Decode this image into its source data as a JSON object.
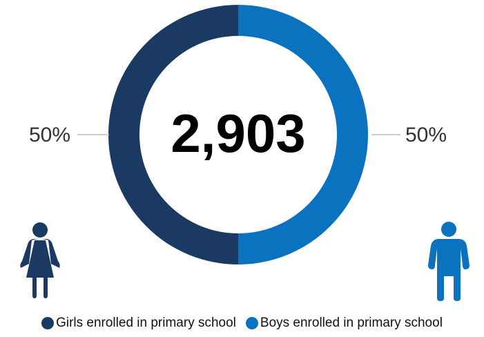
{
  "chart_data": {
    "type": "pie",
    "center_value": "2,903",
    "slices": [
      {
        "name": "Girls enrolled in primary school",
        "percent_label": "50%",
        "value": 50,
        "color": "#1b3a63",
        "icon": "girl-icon"
      },
      {
        "name": "Boys enrolled in primary school",
        "percent_label": "50%",
        "value": 50,
        "color": "#0a72bf",
        "icon": "boy-icon"
      }
    ],
    "legend_position": "bottom"
  }
}
